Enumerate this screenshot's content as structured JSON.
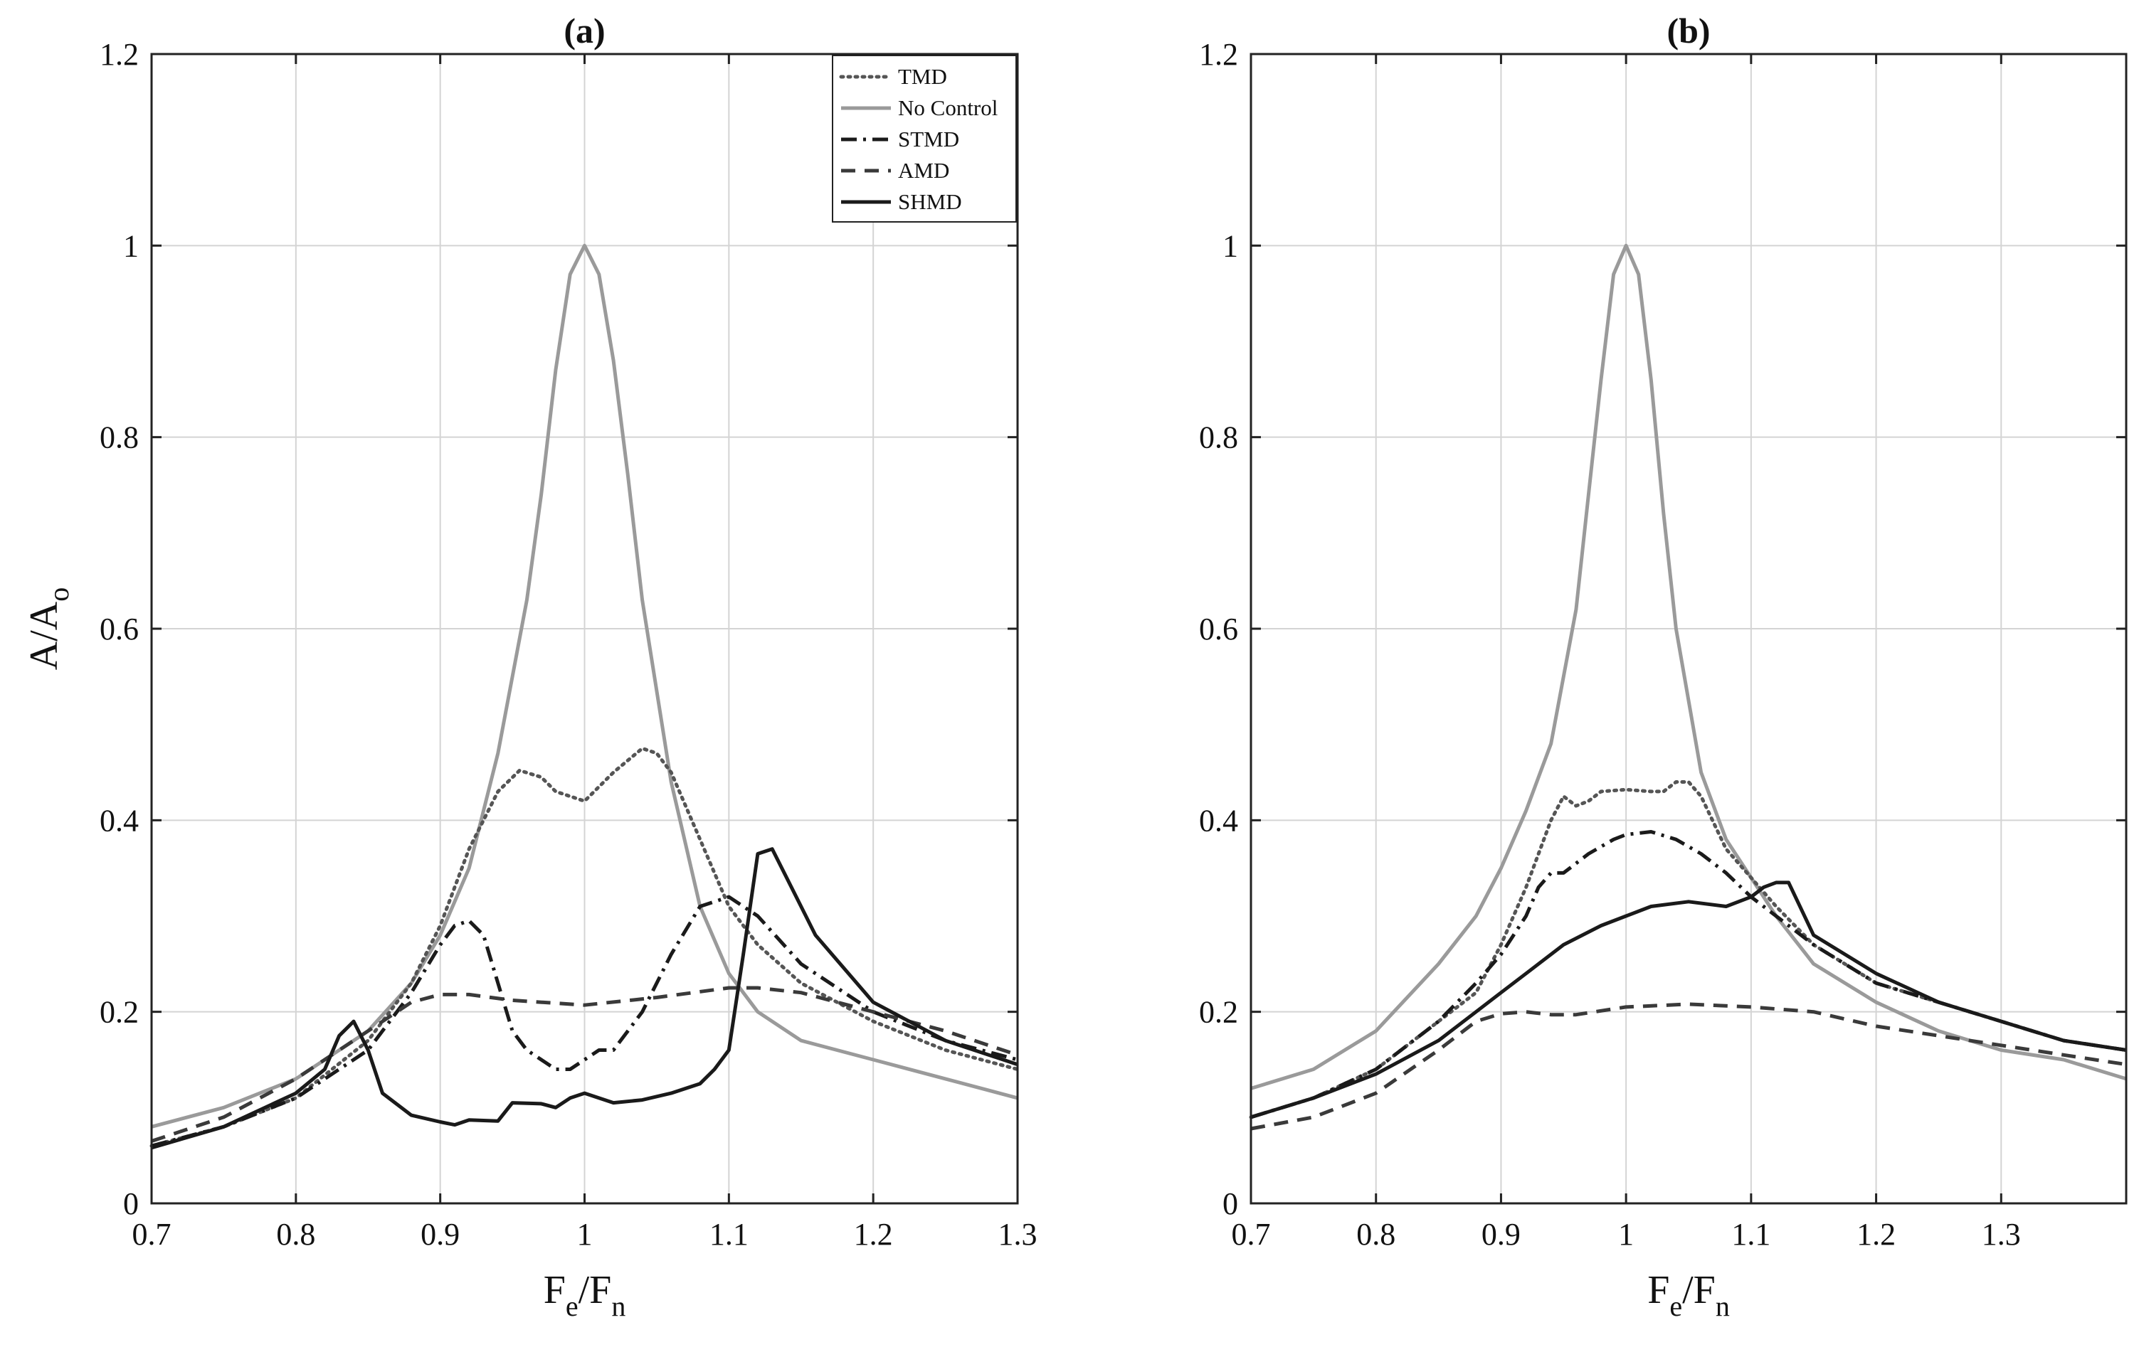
{
  "figure": {
    "legend": {
      "items": [
        {
          "label": "TMD",
          "stroke": "#555555",
          "dash": "3,7"
        },
        {
          "label": "No Control",
          "stroke": "#9a9a9a",
          "dash": ""
        },
        {
          "label": "STMD",
          "stroke": "#1a1a1a",
          "dash": "22,9,4,9"
        },
        {
          "label": "AMD",
          "stroke": "#3a3a3a",
          "dash": "20,13"
        },
        {
          "label": "SHMD",
          "stroke": "#1a1a1a",
          "dash": ""
        }
      ]
    }
  },
  "chart_data": [
    {
      "type": "line",
      "title": "(a)",
      "xlabel": "Fe/Fn",
      "xlabel_main": "F",
      "xlabel_sub1": "e",
      "xlabel_sep": "/F",
      "xlabel_sub2": "n",
      "ylabel": "A/Ao",
      "ylabel_main": "A/A",
      "ylabel_sub": "o",
      "xlim": [
        0.7,
        1.3
      ],
      "ylim": [
        0,
        1.2
      ],
      "xticks": [
        0.7,
        0.8,
        0.9,
        1,
        1.1,
        1.2,
        1.3
      ],
      "xtick_labels": [
        "0.7",
        "0.8",
        "0.9",
        "1",
        "1.1",
        "1.2",
        "1.3"
      ],
      "yticks": [
        0,
        0.2,
        0.4,
        0.6,
        0.8,
        1,
        1.2
      ],
      "ytick_labels": [
        "0",
        "0.2",
        "0.4",
        "0.6",
        "0.8",
        "1",
        "1.2"
      ],
      "grid": true,
      "legend_position": "top-right",
      "series": [
        {
          "name": "No Control",
          "x": [
            0.7,
            0.75,
            0.8,
            0.85,
            0.88,
            0.9,
            0.92,
            0.94,
            0.96,
            0.97,
            0.98,
            0.99,
            1.0,
            1.01,
            1.02,
            1.03,
            1.04,
            1.06,
            1.08,
            1.1,
            1.12,
            1.15,
            1.2,
            1.25,
            1.3
          ],
          "y": [
            0.08,
            0.1,
            0.13,
            0.18,
            0.23,
            0.28,
            0.35,
            0.47,
            0.63,
            0.74,
            0.87,
            0.97,
            1.0,
            0.97,
            0.88,
            0.76,
            0.63,
            0.44,
            0.31,
            0.24,
            0.2,
            0.17,
            0.15,
            0.13,
            0.11
          ]
        },
        {
          "name": "TMD",
          "x": [
            0.7,
            0.75,
            0.8,
            0.85,
            0.88,
            0.9,
            0.92,
            0.94,
            0.955,
            0.97,
            0.98,
            1.0,
            1.02,
            1.04,
            1.05,
            1.06,
            1.08,
            1.1,
            1.12,
            1.15,
            1.2,
            1.25,
            1.3
          ],
          "y": [
            0.06,
            0.08,
            0.11,
            0.17,
            0.23,
            0.29,
            0.37,
            0.43,
            0.452,
            0.445,
            0.43,
            0.42,
            0.45,
            0.475,
            0.47,
            0.45,
            0.38,
            0.31,
            0.27,
            0.23,
            0.19,
            0.16,
            0.14
          ]
        },
        {
          "name": "STMD",
          "x": [
            0.7,
            0.75,
            0.8,
            0.85,
            0.88,
            0.9,
            0.91,
            0.92,
            0.93,
            0.94,
            0.95,
            0.96,
            0.98,
            0.99,
            1.0,
            1.01,
            1.02,
            1.04,
            1.06,
            1.08,
            1.1,
            1.12,
            1.15,
            1.2,
            1.25,
            1.3
          ],
          "y": [
            0.06,
            0.08,
            0.11,
            0.16,
            0.22,
            0.27,
            0.29,
            0.295,
            0.28,
            0.23,
            0.18,
            0.16,
            0.14,
            0.14,
            0.15,
            0.16,
            0.16,
            0.2,
            0.26,
            0.31,
            0.32,
            0.3,
            0.25,
            0.2,
            0.17,
            0.15
          ]
        },
        {
          "name": "AMD",
          "x": [
            0.7,
            0.75,
            0.8,
            0.85,
            0.88,
            0.9,
            0.92,
            0.95,
            1.0,
            1.05,
            1.1,
            1.12,
            1.15,
            1.2,
            1.25,
            1.3
          ],
          "y": [
            0.065,
            0.09,
            0.13,
            0.18,
            0.21,
            0.218,
            0.218,
            0.212,
            0.207,
            0.215,
            0.225,
            0.225,
            0.22,
            0.2,
            0.18,
            0.155
          ]
        },
        {
          "name": "SHMD",
          "x": [
            0.7,
            0.75,
            0.8,
            0.82,
            0.83,
            0.84,
            0.85,
            0.86,
            0.88,
            0.9,
            0.91,
            0.92,
            0.94,
            0.95,
            0.97,
            0.98,
            0.99,
            1.0,
            1.02,
            1.04,
            1.06,
            1.08,
            1.09,
            1.1,
            1.11,
            1.12,
            1.13,
            1.14,
            1.16,
            1.2,
            1.25,
            1.3
          ],
          "y": [
            0.058,
            0.08,
            0.115,
            0.14,
            0.175,
            0.19,
            0.16,
            0.115,
            0.092,
            0.085,
            0.082,
            0.087,
            0.086,
            0.105,
            0.104,
            0.1,
            0.11,
            0.115,
            0.105,
            0.108,
            0.115,
            0.125,
            0.14,
            0.16,
            0.26,
            0.365,
            0.37,
            0.34,
            0.28,
            0.21,
            0.17,
            0.145
          ]
        }
      ]
    },
    {
      "type": "line",
      "title": "(b)",
      "xlabel": "Fe/Fn",
      "xlabel_main": "F",
      "xlabel_sub1": "e",
      "xlabel_sep": "/F",
      "xlabel_sub2": "n",
      "ylabel": "",
      "xlim": [
        0.7,
        1.4
      ],
      "ylim": [
        0,
        1.2
      ],
      "xticks": [
        0.7,
        0.8,
        0.9,
        1,
        1.1,
        1.2,
        1.3
      ],
      "xtick_labels": [
        "0.7",
        "0.8",
        "0.9",
        "1",
        "1.1",
        "1.2",
        "1.3"
      ],
      "yticks": [
        0,
        0.2,
        0.4,
        0.6,
        0.8,
        1,
        1.2
      ],
      "ytick_labels": [
        "0",
        "0.2",
        "0.4",
        "0.6",
        "0.8",
        "1",
        "1.2"
      ],
      "grid": true,
      "series": [
        {
          "name": "No Control",
          "x": [
            0.7,
            0.75,
            0.8,
            0.85,
            0.88,
            0.9,
            0.92,
            0.94,
            0.96,
            0.97,
            0.98,
            0.99,
            1.0,
            1.01,
            1.02,
            1.03,
            1.04,
            1.06,
            1.08,
            1.1,
            1.12,
            1.15,
            1.2,
            1.25,
            1.3,
            1.35,
            1.4
          ],
          "y": [
            0.12,
            0.14,
            0.18,
            0.25,
            0.3,
            0.35,
            0.41,
            0.48,
            0.62,
            0.74,
            0.86,
            0.97,
            1.0,
            0.97,
            0.86,
            0.72,
            0.6,
            0.45,
            0.38,
            0.34,
            0.3,
            0.25,
            0.21,
            0.18,
            0.16,
            0.15,
            0.13
          ]
        },
        {
          "name": "TMD",
          "x": [
            0.7,
            0.75,
            0.8,
            0.85,
            0.88,
            0.9,
            0.92,
            0.94,
            0.95,
            0.96,
            0.97,
            0.98,
            1.0,
            1.02,
            1.03,
            1.04,
            1.05,
            1.06,
            1.08,
            1.1,
            1.12,
            1.15,
            1.2,
            1.25,
            1.3,
            1.35,
            1.4
          ],
          "y": [
            0.09,
            0.11,
            0.14,
            0.19,
            0.22,
            0.27,
            0.33,
            0.4,
            0.425,
            0.415,
            0.42,
            0.43,
            0.432,
            0.43,
            0.43,
            0.44,
            0.44,
            0.425,
            0.37,
            0.34,
            0.31,
            0.27,
            0.23,
            0.21,
            0.19,
            0.17,
            0.16
          ]
        },
        {
          "name": "STMD",
          "x": [
            0.7,
            0.75,
            0.8,
            0.85,
            0.88,
            0.9,
            0.92,
            0.93,
            0.94,
            0.95,
            0.97,
            0.99,
            1.0,
            1.02,
            1.04,
            1.06,
            1.08,
            1.1,
            1.12,
            1.15,
            1.2,
            1.25,
            1.3,
            1.35,
            1.4
          ],
          "y": [
            0.09,
            0.11,
            0.14,
            0.19,
            0.23,
            0.26,
            0.3,
            0.33,
            0.345,
            0.345,
            0.365,
            0.38,
            0.385,
            0.388,
            0.38,
            0.365,
            0.345,
            0.32,
            0.3,
            0.27,
            0.23,
            0.21,
            0.19,
            0.17,
            0.16
          ]
        },
        {
          "name": "AMD",
          "x": [
            0.7,
            0.75,
            0.8,
            0.85,
            0.88,
            0.9,
            0.92,
            0.94,
            0.96,
            1.0,
            1.05,
            1.1,
            1.15,
            1.2,
            1.25,
            1.3,
            1.35,
            1.4
          ],
          "y": [
            0.078,
            0.09,
            0.115,
            0.16,
            0.19,
            0.198,
            0.2,
            0.197,
            0.197,
            0.205,
            0.208,
            0.205,
            0.2,
            0.185,
            0.175,
            0.165,
            0.155,
            0.145
          ]
        },
        {
          "name": "SHMD",
          "x": [
            0.7,
            0.75,
            0.8,
            0.85,
            0.88,
            0.9,
            0.92,
            0.95,
            0.98,
            1.0,
            1.02,
            1.05,
            1.08,
            1.1,
            1.11,
            1.12,
            1.13,
            1.15,
            1.2,
            1.25,
            1.3,
            1.35,
            1.4
          ],
          "y": [
            0.09,
            0.11,
            0.135,
            0.17,
            0.2,
            0.22,
            0.24,
            0.27,
            0.29,
            0.3,
            0.31,
            0.315,
            0.31,
            0.32,
            0.33,
            0.335,
            0.335,
            0.28,
            0.24,
            0.21,
            0.19,
            0.17,
            0.16
          ]
        }
      ]
    }
  ]
}
